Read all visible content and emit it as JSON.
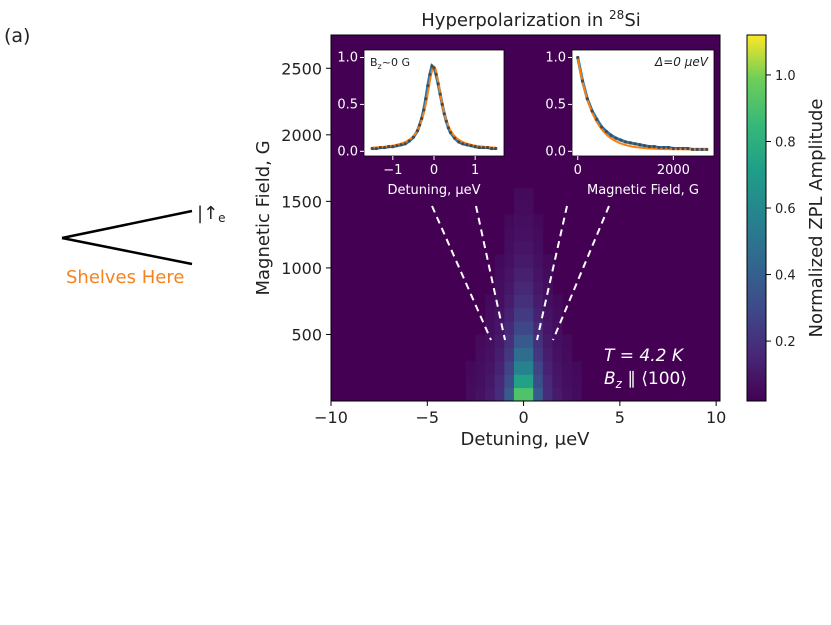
{
  "panel_label": "(a)",
  "side_diagram": {
    "level_label": "|↑",
    "level_subscript": "e",
    "shelves_text": "Shelves Here",
    "shelves_color": "#f5821f"
  },
  "chart_data": [
    {
      "type": "heatmap",
      "title": "Hyperpolarization in ",
      "title_sup": "28",
      "title_tail": "Si",
      "xlabel": "Detuning, μeV",
      "ylabel": "Magnetic Field, G",
      "xlim": [
        -10,
        10.2
      ],
      "ylim": [
        0,
        2750
      ],
      "x_ticks": [
        -10,
        -5,
        0,
        5,
        10
      ],
      "x_tick_labels": [
        "−10",
        "−5",
        "0",
        "5",
        "10"
      ],
      "y_ticks": [
        500,
        1000,
        1500,
        2000,
        2500
      ],
      "y_tick_labels": [
        "500",
        "1000",
        "1500",
        "2000",
        "2500"
      ],
      "colormap": "viridis",
      "center_detuning": 0.0,
      "field_bin_G": 100,
      "detuning_bin_ueV": 0.5,
      "linewidth_ueV": 0.5,
      "field_decay_G": 380,
      "annotation_T": "T = 4.2 K",
      "annotation_B": "B",
      "annotation_B_sub": "z",
      "annotation_B_tail": " ∥ ⟨100⟩",
      "colorbar": {
        "label": "Normalized ZPL Amplitude",
        "range": [
          0.02,
          1.12
        ],
        "ticks": [
          0.2,
          0.4,
          0.6,
          0.8,
          1.0
        ],
        "tick_labels": [
          "0.2",
          "0.4",
          "0.6",
          "0.8",
          "1.0"
        ]
      }
    },
    {
      "type": "line",
      "inset": "left",
      "annotation": "B",
      "annotation_sub": "z",
      "annotation_tail": "~0 G",
      "xlabel": "Detuning, μeV",
      "xlim": [
        -1.7,
        1.7
      ],
      "ylim": [
        -0.05,
        1.08
      ],
      "x_ticks": [
        -1,
        0,
        1
      ],
      "x_tick_labels": [
        "−1",
        "0",
        "1"
      ],
      "y_ticks": [
        0.0,
        0.5,
        1.0
      ],
      "y_tick_labels": [
        "0.0",
        "0.5",
        "1.0"
      ],
      "series": [
        {
          "name": "data",
          "color": "#1f77b4",
          "x": [
            -1.5,
            -1.4,
            -1.3,
            -1.2,
            -1.1,
            -1.0,
            -0.9,
            -0.8,
            -0.7,
            -0.6,
            -0.5,
            -0.4,
            -0.35,
            -0.3,
            -0.25,
            -0.2,
            -0.15,
            -0.1,
            -0.05,
            0.0,
            0.05,
            0.1,
            0.15,
            0.2,
            0.25,
            0.3,
            0.35,
            0.4,
            0.5,
            0.6,
            0.7,
            0.8,
            0.9,
            1.0,
            1.1,
            1.2,
            1.3,
            1.4,
            1.5
          ],
          "y": [
            0.03,
            0.03,
            0.04,
            0.04,
            0.05,
            0.05,
            0.06,
            0.07,
            0.08,
            0.11,
            0.15,
            0.22,
            0.28,
            0.35,
            0.44,
            0.56,
            0.7,
            0.82,
            0.91,
            0.89,
            0.82,
            0.72,
            0.61,
            0.5,
            0.4,
            0.32,
            0.25,
            0.2,
            0.14,
            0.1,
            0.08,
            0.07,
            0.06,
            0.05,
            0.04,
            0.04,
            0.04,
            0.03,
            0.03
          ]
        },
        {
          "name": "fit",
          "color": "#ff7f0e",
          "model": "lorentzian",
          "amplitude": 0.88,
          "center": 0.0,
          "hwhm": 0.22,
          "offset": 0.02
        }
      ]
    },
    {
      "type": "line",
      "inset": "right",
      "annotation": "Δ=0 μeV",
      "xlabel": "Magnetic Field, G",
      "xlim": [
        -120,
        2850
      ],
      "ylim": [
        -0.05,
        1.08
      ],
      "x_ticks": [
        0,
        2000
      ],
      "x_tick_labels": [
        "0",
        "2000"
      ],
      "y_ticks": [
        0.0,
        0.5,
        1.0
      ],
      "y_tick_labels": [
        "0.0",
        "0.5",
        "1.0"
      ],
      "series": [
        {
          "name": "data",
          "color": "#1f77b4",
          "x": [
            0,
            100,
            200,
            300,
            400,
            500,
            600,
            700,
            800,
            900,
            1000,
            1100,
            1200,
            1300,
            1400,
            1500,
            1600,
            1700,
            1800,
            1900,
            2000,
            2100,
            2200,
            2300,
            2400,
            2500,
            2600,
            2700
          ],
          "y": [
            1.0,
            0.75,
            0.56,
            0.43,
            0.34,
            0.26,
            0.21,
            0.17,
            0.14,
            0.12,
            0.1,
            0.09,
            0.08,
            0.07,
            0.06,
            0.05,
            0.05,
            0.04,
            0.04,
            0.04,
            0.03,
            0.03,
            0.03,
            0.03,
            0.02,
            0.02,
            0.02,
            0.02
          ]
        },
        {
          "name": "fit",
          "color": "#ff7f0e",
          "model": "exponential",
          "amplitude": 0.98,
          "decay": 330,
          "offset": 0.02
        }
      ]
    }
  ]
}
